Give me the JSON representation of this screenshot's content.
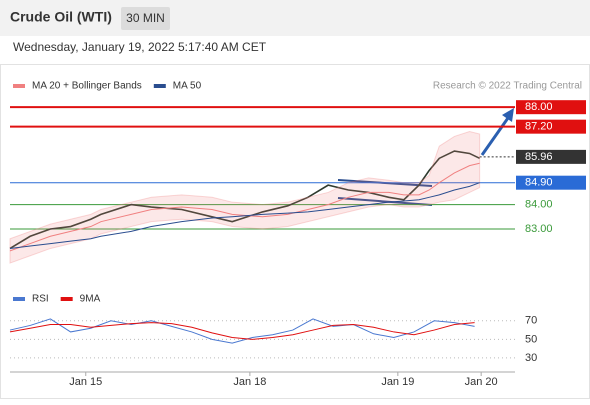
{
  "header": {
    "title": "Crude Oil (WTI)",
    "interval": "30 MIN",
    "timestamp": "Wednesday, January 19, 2022 5:17:40 AM CET"
  },
  "chart_data": [
    {
      "type": "line",
      "credit": "Research © 2022 Trading Central",
      "x": [
        0,
        4,
        8,
        12,
        16,
        18,
        24,
        28,
        34,
        40,
        44,
        50,
        55,
        59,
        63,
        67,
        71,
        75,
        78,
        81,
        83,
        85,
        88,
        91,
        93
      ],
      "xlim": [
        0,
        100
      ],
      "ylim": [
        80.7,
        88.5
      ],
      "xticks": [
        {
          "value": 15,
          "label": "Jan 15"
        },
        {
          "value": 47.5,
          "label": "Jan 18"
        },
        {
          "value": 76.8,
          "label": "Jan 19"
        },
        {
          "value": 93.3,
          "label": "Jan 20"
        }
      ],
      "series": [
        {
          "color": "#2f3b2f",
          "values": [
            82.2,
            82.7,
            83.0,
            83.1,
            83.4,
            83.6,
            84.0,
            83.9,
            83.8,
            83.5,
            83.3,
            83.7,
            83.95,
            84.3,
            84.8,
            84.6,
            84.5,
            84.3,
            84.2,
            84.8,
            85.4,
            85.9,
            86.2,
            86.1,
            85.9
          ]
        },
        {
          "name": "MA 20 + Bollinger Bands",
          "color": "#f08080",
          "values": [
            82.1,
            82.4,
            82.7,
            82.9,
            83.1,
            83.3,
            83.6,
            83.8,
            83.9,
            83.8,
            83.6,
            83.5,
            83.6,
            83.8,
            84.0,
            84.3,
            84.5,
            84.5,
            84.4,
            84.4,
            84.6,
            84.9,
            85.3,
            85.6,
            85.7
          ],
          "bands": {
            "upper": [
              82.6,
              82.9,
              83.2,
              83.4,
              83.6,
              83.8,
              84.1,
              84.3,
              84.4,
              84.3,
              84.1,
              84.0,
              84.1,
              84.3,
              84.5,
              84.9,
              85.1,
              85.0,
              84.9,
              84.9,
              85.2,
              86.4,
              86.8,
              87.0,
              86.9
            ],
            "lower": [
              81.6,
              81.9,
              82.2,
              82.4,
              82.6,
              82.8,
              83.1,
              83.3,
              83.4,
              83.3,
              83.1,
              83.0,
              83.1,
              83.3,
              83.5,
              83.7,
              83.9,
              84.0,
              83.9,
              83.9,
              84.0,
              84.1,
              84.2,
              84.5,
              84.7
            ]
          }
        },
        {
          "name": "MA 50",
          "color": "#2a4d8f",
          "values": [
            82.2,
            82.3,
            82.4,
            82.5,
            82.6,
            82.7,
            82.9,
            83.1,
            83.3,
            83.45,
            83.5,
            83.6,
            83.65,
            83.7,
            83.8,
            83.9,
            84.0,
            84.1,
            84.15,
            84.2,
            84.3,
            84.4,
            84.6,
            84.75,
            84.9
          ]
        }
      ],
      "levels": [
        {
          "value": 88,
          "label": "88.00",
          "color": "#e01010",
          "boxed": true,
          "style": "solid"
        },
        {
          "value": 87.2,
          "label": "87.20",
          "color": "#e01010",
          "boxed": true,
          "style": "solid"
        },
        {
          "value": 85.96,
          "label": "85.96",
          "color": "#333333",
          "boxed": true,
          "style": "dotted"
        },
        {
          "value": 84.9,
          "label": "84.90",
          "color": "#2a6bd6",
          "boxed": true,
          "style": "solid"
        },
        {
          "value": 84,
          "label": "84.00",
          "color": "#3a9a3a",
          "boxed": false,
          "style": "solid"
        },
        {
          "value": 83,
          "label": "83.00",
          "color": "#3a9a3a",
          "boxed": false,
          "style": "solid"
        }
      ]
    },
    {
      "type": "line",
      "x": [
        0,
        4,
        8,
        12,
        16,
        20,
        24,
        28,
        32,
        36,
        40,
        44,
        48,
        52,
        56,
        60,
        64,
        68,
        72,
        76,
        80,
        84,
        88,
        92
      ],
      "xlim": [
        0,
        100
      ],
      "ylim": [
        17,
        87
      ],
      "yticks": [
        30,
        50,
        70
      ],
      "series": [
        {
          "name": "RSI",
          "color": "#4a78d0",
          "values": [
            60,
            65,
            72,
            58,
            62,
            70,
            66,
            70,
            64,
            58,
            50,
            46,
            52,
            55,
            60,
            72,
            64,
            66,
            56,
            52,
            58,
            70,
            68,
            64
          ]
        },
        {
          "name": "9MA",
          "color": "#e01010",
          "values": [
            58,
            62,
            66,
            66,
            63,
            65,
            67,
            68,
            67,
            63,
            57,
            52,
            50,
            52,
            55,
            60,
            65,
            66,
            63,
            58,
            55,
            60,
            66,
            68
          ]
        }
      ]
    }
  ]
}
